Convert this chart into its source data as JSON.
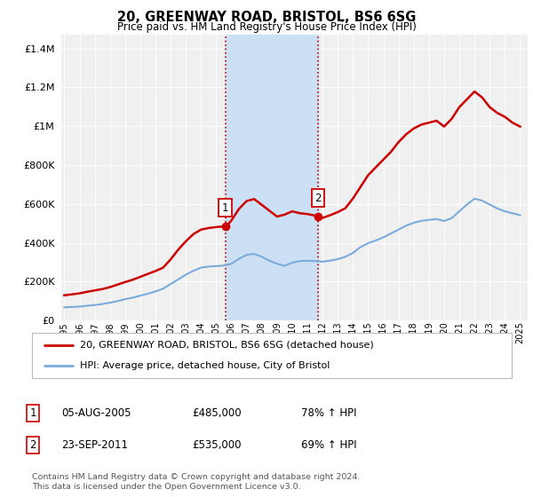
{
  "title": "20, GREENWAY ROAD, BRISTOL, BS6 6SG",
  "subtitle": "Price paid vs. HM Land Registry's House Price Index (HPI)",
  "ytick_values": [
    0,
    200000,
    400000,
    600000,
    800000,
    1000000,
    1200000,
    1400000
  ],
  "ylim": [
    0,
    1470000
  ],
  "xlim_start": 1994.8,
  "xlim_end": 2025.5,
  "background_color": "#ffffff",
  "plot_bg_color": "#f0f0f0",
  "highlight_color": "#cce0f5",
  "sale1_year": 2005.59,
  "sale2_year": 2011.72,
  "sale1_price": 485000,
  "sale2_price": 535000,
  "legend_line1": "20, GREENWAY ROAD, BRISTOL, BS6 6SG (detached house)",
  "legend_line2": "HPI: Average price, detached house, City of Bristol",
  "table_row1": [
    "1",
    "05-AUG-2005",
    "£485,000",
    "78% ↑ HPI"
  ],
  "table_row2": [
    "2",
    "23-SEP-2011",
    "£535,000",
    "69% ↑ HPI"
  ],
  "footnote": "Contains HM Land Registry data © Crown copyright and database right 2024.\nThis data is licensed under the Open Government Licence v3.0.",
  "house_color": "#cc0000",
  "hpi_color": "#7aabdc",
  "house_years": [
    1995.0,
    1995.5,
    1996.0,
    1996.5,
    1997.0,
    1997.5,
    1998.0,
    1998.5,
    1999.0,
    1999.5,
    2000.0,
    2000.5,
    2001.0,
    2001.5,
    2002.0,
    2002.5,
    2003.0,
    2003.5,
    2004.0,
    2004.5,
    2005.0,
    2005.59,
    2005.75,
    2006.0,
    2006.5,
    2007.0,
    2007.5,
    2008.0,
    2008.5,
    2009.0,
    2009.5,
    2010.0,
    2010.5,
    2011.0,
    2011.5,
    2011.72,
    2012.0,
    2012.5,
    2013.0,
    2013.5,
    2014.0,
    2014.5,
    2015.0,
    2015.5,
    2016.0,
    2016.5,
    2017.0,
    2017.5,
    2018.0,
    2018.5,
    2019.0,
    2019.5,
    2020.0,
    2020.5,
    2021.0,
    2021.5,
    2022.0,
    2022.5,
    2023.0,
    2023.5,
    2024.0,
    2024.5,
    2025.0
  ],
  "house_prices": [
    130000,
    135000,
    140000,
    148000,
    155000,
    162000,
    172000,
    185000,
    198000,
    210000,
    225000,
    240000,
    255000,
    272000,
    315000,
    365000,
    408000,
    445000,
    468000,
    476000,
    481000,
    485000,
    492000,
    515000,
    575000,
    615000,
    625000,
    595000,
    565000,
    535000,
    545000,
    562000,
    552000,
    548000,
    540000,
    535000,
    528000,
    542000,
    558000,
    578000,
    628000,
    688000,
    748000,
    788000,
    828000,
    868000,
    918000,
    958000,
    988000,
    1008000,
    1018000,
    1028000,
    998000,
    1038000,
    1098000,
    1138000,
    1178000,
    1148000,
    1098000,
    1068000,
    1048000,
    1018000,
    998000
  ],
  "hpi_years": [
    1995.0,
    1995.5,
    1996.0,
    1996.5,
    1997.0,
    1997.5,
    1998.0,
    1998.5,
    1999.0,
    1999.5,
    2000.0,
    2000.5,
    2001.0,
    2001.5,
    2002.0,
    2002.5,
    2003.0,
    2003.5,
    2004.0,
    2004.5,
    2005.0,
    2005.5,
    2006.0,
    2006.5,
    2007.0,
    2007.5,
    2008.0,
    2008.5,
    2009.0,
    2009.5,
    2010.0,
    2010.5,
    2011.0,
    2011.5,
    2012.0,
    2012.5,
    2013.0,
    2013.5,
    2014.0,
    2014.5,
    2015.0,
    2015.5,
    2016.0,
    2016.5,
    2017.0,
    2017.5,
    2018.0,
    2018.5,
    2019.0,
    2019.5,
    2020.0,
    2020.5,
    2021.0,
    2021.5,
    2022.0,
    2022.5,
    2023.0,
    2023.5,
    2024.0,
    2024.5,
    2025.0
  ],
  "hpi_prices": [
    68000,
    70000,
    72000,
    76000,
    80000,
    85000,
    92000,
    100000,
    110000,
    118000,
    128000,
    138000,
    150000,
    164000,
    188000,
    212000,
    236000,
    256000,
    272000,
    278000,
    280000,
    283000,
    292000,
    318000,
    338000,
    343000,
    328000,
    308000,
    292000,
    282000,
    298000,
    306000,
    308000,
    306000,
    303000,
    308000,
    316000,
    328000,
    348000,
    378000,
    398000,
    412000,
    428000,
    448000,
    468000,
    488000,
    503000,
    513000,
    518000,
    522000,
    512000,
    527000,
    562000,
    597000,
    627000,
    617000,
    597000,
    577000,
    562000,
    552000,
    542000
  ]
}
